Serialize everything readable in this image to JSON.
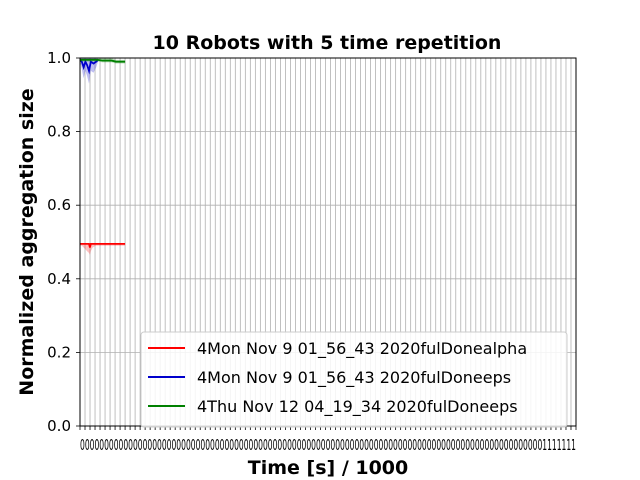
{
  "chart_data": {
    "type": "line",
    "title": "10 Robots with 5 time repetition",
    "xlabel": "Time [s] / 1000",
    "ylabel": "Normalized aggregation size",
    "ylim": [
      0.0,
      1.0
    ],
    "xlim": [
      0,
      1.1
    ],
    "yticks": [
      0.0,
      0.2,
      0.4,
      0.6,
      0.8,
      1.0
    ],
    "ytick_labels": [
      "0.0",
      "0.2",
      "0.4",
      "0.6",
      "0.8",
      "1.0"
    ],
    "xtick_count": 100,
    "xtick_labels_text": "0000000000000000000000000000000000000000000000000000000000000000000000000000000000000000000000001111111",
    "grid": true,
    "legend_position": "lower-right",
    "series": [
      {
        "name": "4Mon Nov  9 01_56_43 2020fulDonealpha",
        "color": "#ff0000",
        "x": [
          0.0,
          0.004,
          0.008,
          0.012,
          0.016,
          0.02,
          0.022,
          0.024,
          0.028,
          0.035,
          0.05,
          0.07,
          0.09,
          0.1
        ],
        "y": [
          0.495,
          0.495,
          0.495,
          0.495,
          0.495,
          0.495,
          0.485,
          0.495,
          0.495,
          0.495,
          0.495,
          0.495,
          0.495,
          0.495
        ],
        "band_low": [
          0.49,
          0.49,
          0.485,
          0.48,
          0.475,
          0.47,
          0.465,
          0.475,
          0.485,
          0.49,
          0.49,
          0.49,
          0.49,
          0.49
        ],
        "band_high": [
          0.495,
          0.495,
          0.495,
          0.495,
          0.495,
          0.495,
          0.495,
          0.495,
          0.495,
          0.495,
          0.495,
          0.495,
          0.495,
          0.495
        ]
      },
      {
        "name": "4Mon Nov  9 01_56_43 2020fulDoneeps",
        "color": "#0000cc",
        "x": [
          0.0,
          0.004,
          0.008,
          0.012,
          0.016,
          0.02,
          0.024,
          0.03,
          0.036,
          0.04
        ],
        "y": [
          0.995,
          0.99,
          0.975,
          0.99,
          0.98,
          0.965,
          0.99,
          0.985,
          0.99,
          0.995
        ],
        "band_low": [
          0.99,
          0.97,
          0.945,
          0.965,
          0.95,
          0.93,
          0.965,
          0.96,
          0.975,
          0.99
        ],
        "band_high": [
          1.0,
          1.0,
          1.0,
          1.0,
          1.0,
          1.0,
          1.0,
          1.0,
          1.0,
          1.0
        ]
      },
      {
        "name": "4Thu Nov 12 04_19_34 2020fulDoneeps",
        "color": "#008000",
        "x": [
          0.0,
          0.01,
          0.02,
          0.03,
          0.04,
          0.05,
          0.06,
          0.07,
          0.08,
          0.09,
          0.1
        ],
        "y": [
          0.995,
          0.995,
          0.995,
          0.995,
          0.995,
          0.993,
          0.993,
          0.993,
          0.99,
          0.99,
          0.99
        ],
        "band_low": [
          0.99,
          0.99,
          0.99,
          0.99,
          0.99,
          0.988,
          0.988,
          0.988,
          0.985,
          0.985,
          0.985
        ],
        "band_high": [
          1.0,
          1.0,
          1.0,
          1.0,
          1.0,
          1.0,
          1.0,
          1.0,
          0.995,
          0.995,
          0.995
        ]
      }
    ]
  }
}
